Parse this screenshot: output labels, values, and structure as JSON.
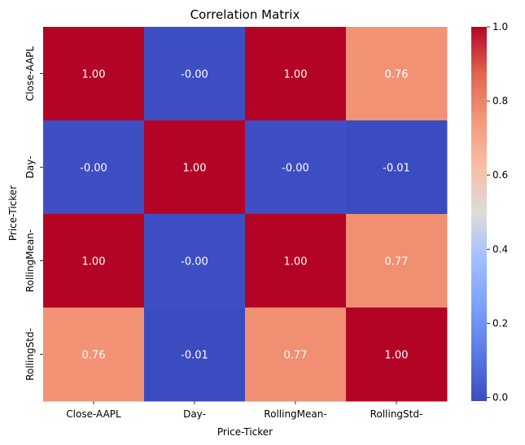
{
  "chart_data": {
    "type": "heatmap",
    "title": "Correlation Matrix",
    "xlabel": "Price-Ticker",
    "ylabel": "Price-Ticker",
    "x_categories": [
      "Close-AAPL",
      "Day-",
      "RollingMean-",
      "RollingStd-"
    ],
    "y_categories": [
      "Close-AAPL",
      "Day-",
      "RollingMean-",
      "RollingStd-"
    ],
    "values": [
      [
        1.0,
        -0.0,
        1.0,
        0.76
      ],
      [
        -0.0,
        1.0,
        -0.0,
        -0.01
      ],
      [
        1.0,
        -0.0,
        1.0,
        0.77
      ],
      [
        0.76,
        -0.01,
        0.77,
        1.0
      ]
    ],
    "cell_labels": [
      [
        "1.00",
        "-0.00",
        "1.00",
        "0.76"
      ],
      [
        "-0.00",
        "1.00",
        "-0.00",
        "-0.01"
      ],
      [
        "1.00",
        "-0.00",
        "1.00",
        "0.77"
      ],
      [
        "0.76",
        "-0.01",
        "0.77",
        "1.00"
      ]
    ],
    "colormap": "coolwarm",
    "colorbar": {
      "range": [
        -0.01,
        1.0
      ],
      "ticks": [
        0.0,
        0.2,
        0.4,
        0.6,
        0.8,
        1.0
      ],
      "tick_labels": [
        "0.0",
        "0.2",
        "0.4",
        "0.6",
        "0.8",
        "1.0"
      ]
    }
  }
}
